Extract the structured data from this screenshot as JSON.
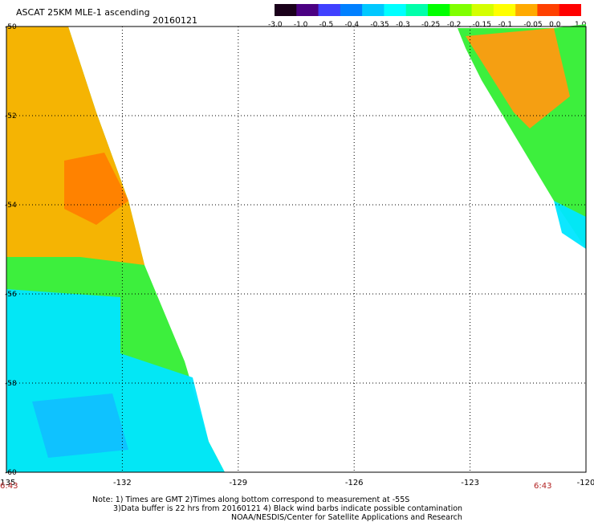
{
  "header": {
    "title": "ASCAT 25KM MLE-1 ascending",
    "date": "20160121"
  },
  "colorbar": {
    "labels": [
      "-3.0",
      "-1.0",
      "-0.5",
      "-0.4",
      "-0.35",
      "-0.3",
      "-0.25",
      "-0.2",
      "-0.15",
      "-0.1",
      "-0.05",
      "0.0",
      "1.0"
    ],
    "colors": [
      "#1a001a",
      "#4b0082",
      "#4040ff",
      "#0080ff",
      "#00c8ff",
      "#00ffff",
      "#00ffaa",
      "#00ff00",
      "#80ff00",
      "#d4ff00",
      "#ffff00",
      "#ffaa00",
      "#ff4000",
      "#ff0000"
    ]
  },
  "chart_data": {
    "type": "heatmap",
    "title": "ASCAT 25KM MLE-1 ascending",
    "subtitle": "20160121",
    "xlim": [
      -135,
      -120
    ],
    "ylim": [
      -60,
      -50
    ],
    "x_ticks": [
      "-135",
      "-132",
      "-129",
      "-126",
      "-123",
      "-120"
    ],
    "y_ticks": [
      "-50",
      "-52",
      "-54",
      "-56",
      "-58",
      "-60"
    ],
    "grid": true,
    "time_labels": [
      "6:43",
      "6:43"
    ]
  },
  "notes": {
    "line1": "Note: 1) Times are GMT 2)Times along bottom correspond to measurement at -55S",
    "line2": "3)Data buffer is 22 hrs from 20160121 4) Black wind barbs indicate possible contamination",
    "line3": "NOAA/NESDIS/Center for Satellite Applications and Research"
  }
}
